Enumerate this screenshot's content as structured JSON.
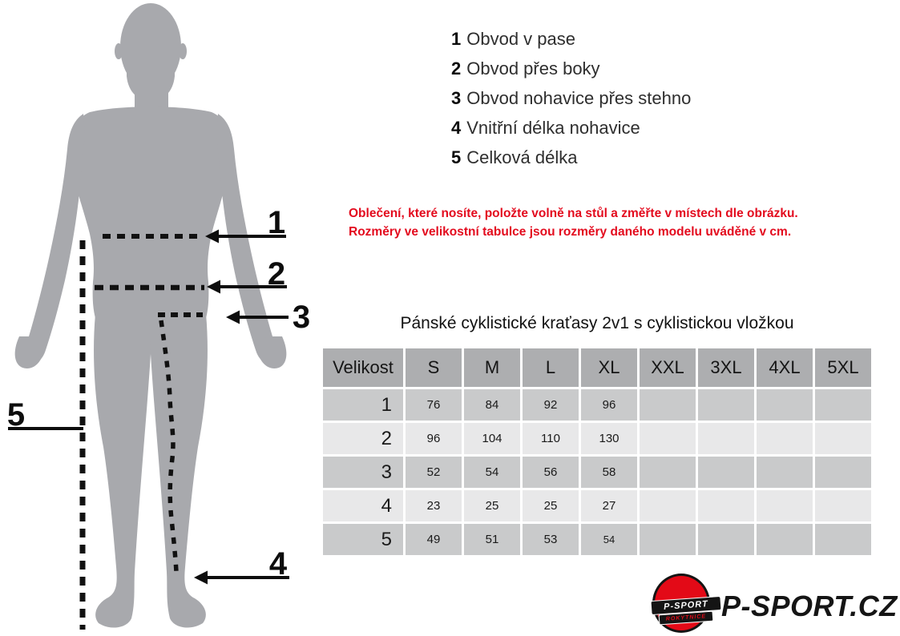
{
  "figure": {
    "markers": [
      "1",
      "2",
      "3",
      "4",
      "5"
    ]
  },
  "legend": {
    "items": [
      {
        "num": "1",
        "label": "Obvod v pase"
      },
      {
        "num": "2",
        "label": "Obvod přes boky"
      },
      {
        "num": "3",
        "label": "Obvod nohavice přes stehno"
      },
      {
        "num": "4",
        "label": "Vnitřní délka nohavice"
      },
      {
        "num": "5",
        "label": "Celková délka"
      }
    ]
  },
  "note": {
    "line1": "Oblečení, které nosíte, položte volně na stůl a změřte v místech dle obrázku.",
    "line2": "Rozměry ve velikostní tabulce jsou rozměry daného modelu uváděné v cm."
  },
  "table": {
    "title": "Pánské cyklistické kraťasy 2v1 s cyklistickou vložkou",
    "headers": [
      "Velikost",
      "S",
      "M",
      "L",
      "XL",
      "XXL",
      "3XL",
      "4XL",
      "5XL"
    ],
    "rows": [
      {
        "label": "1",
        "values": [
          "76",
          "84",
          "92",
          "96",
          "",
          "",
          "",
          ""
        ]
      },
      {
        "label": "2",
        "values": [
          "96",
          "104",
          "110",
          "130",
          "",
          "",
          "",
          ""
        ]
      },
      {
        "label": "3",
        "values": [
          "52",
          "54",
          "56",
          "58",
          "",
          "",
          "",
          ""
        ]
      },
      {
        "label": "4",
        "values": [
          "23",
          "25",
          "25",
          "27",
          "",
          "",
          "",
          ""
        ]
      },
      {
        "label": "5",
        "values": [
          "49",
          "51",
          "53",
          "54",
          "",
          "",
          "",
          ""
        ]
      }
    ],
    "small_cells": [
      [
        4,
        3
      ]
    ]
  },
  "logo": {
    "badge_line1": "P-SPORT",
    "badge_line2": "ROKYTNICE",
    "text": "P-SPORT.CZ"
  },
  "colors": {
    "accent_red": "#e30b1e",
    "silhouette_gray": "#a8a9ad",
    "table_header_gray": "#adaeb0",
    "table_row_dark": "#c9cacb",
    "table_row_light": "#e8e8e9",
    "marker_black": "#0d0d0d"
  }
}
